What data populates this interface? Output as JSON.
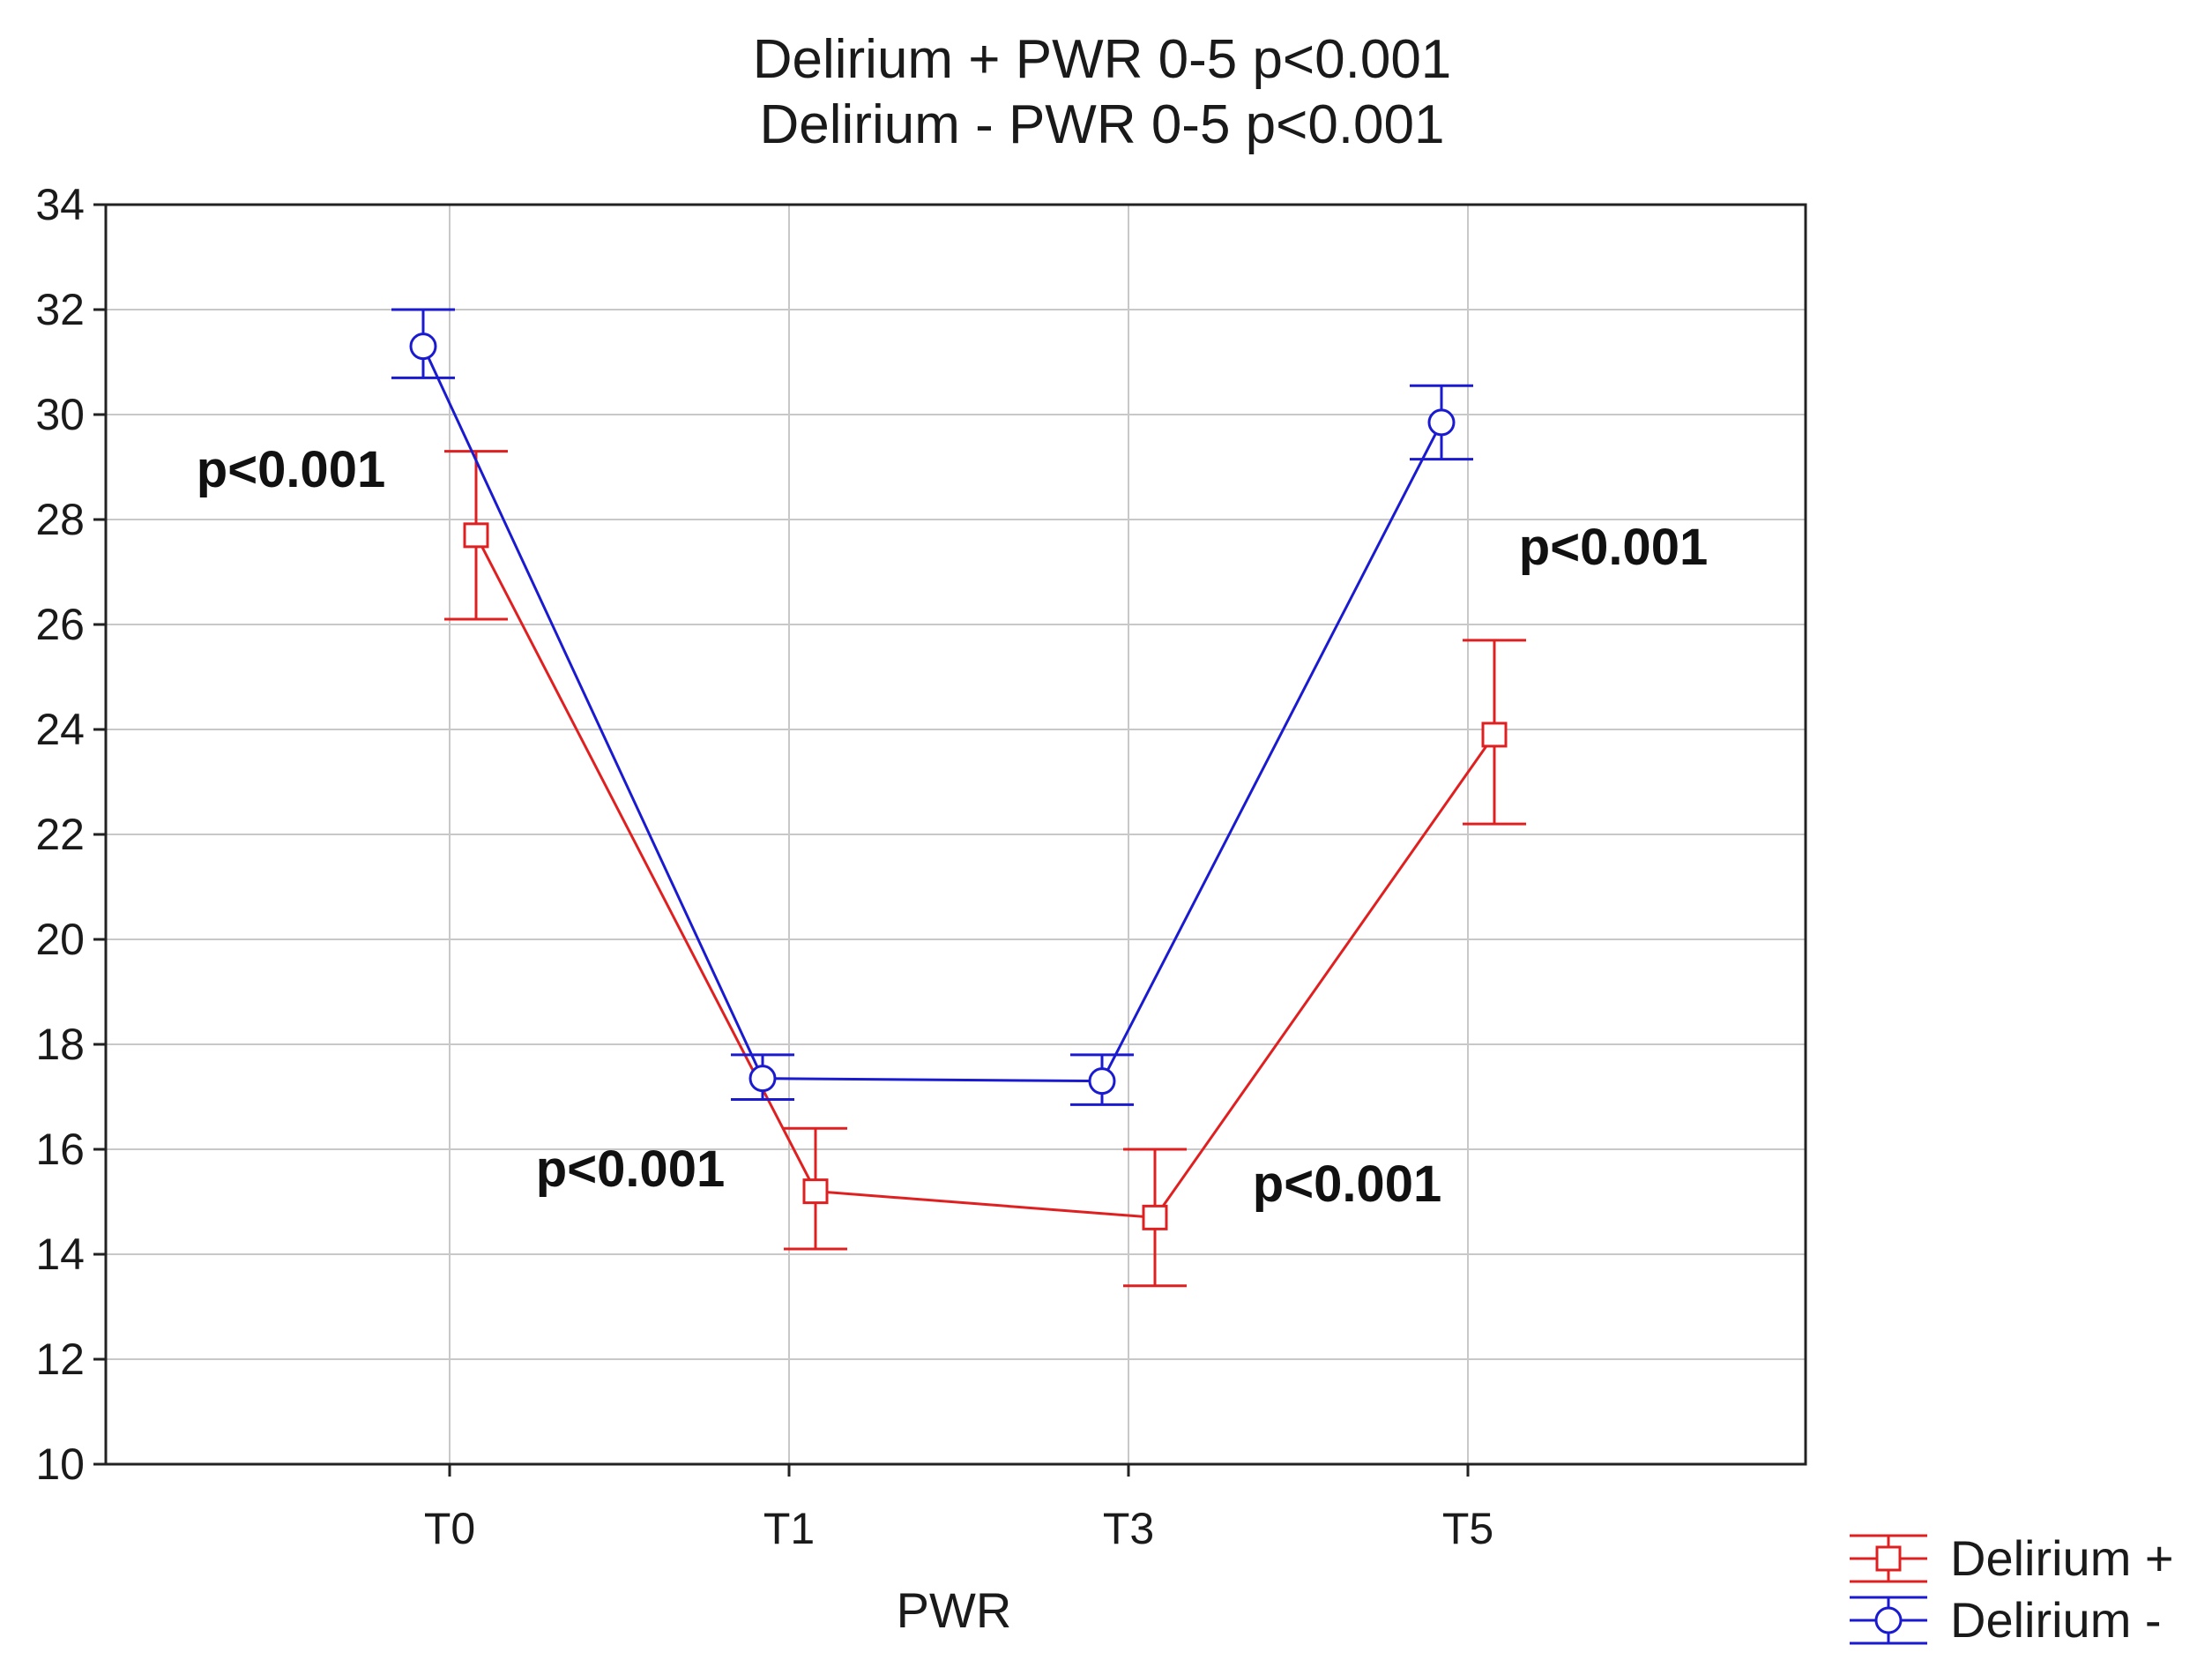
{
  "chart_data": {
    "type": "line",
    "title_lines": [
      "Delirium + PWR 0-5 p<0.001",
      "Delirium - PWR 0-5 p<0.001"
    ],
    "xlabel": "PWR",
    "ylabel": "",
    "categories": [
      "T0",
      "T1",
      "T3",
      "T5"
    ],
    "ylim": [
      10,
      34
    ],
    "yticks": [
      10,
      12,
      14,
      16,
      18,
      20,
      22,
      24,
      26,
      28,
      30,
      32,
      34
    ],
    "grid": true,
    "legend_position": "bottom-right",
    "series": [
      {
        "name": "Delirium +",
        "color": "#e02020",
        "marker": "square",
        "values": [
          27.7,
          15.2,
          14.7,
          23.9
        ],
        "lower": [
          26.1,
          14.1,
          13.4,
          22.2
        ],
        "upper": [
          29.3,
          16.4,
          16.0,
          25.7
        ]
      },
      {
        "name": "Delirium -",
        "color": "#1a1ad0",
        "marker": "circle",
        "values": [
          31.3,
          17.35,
          17.3,
          29.85
        ],
        "lower": [
          30.7,
          16.95,
          16.85,
          29.15
        ],
        "upper": [
          32.0,
          17.8,
          17.8,
          30.55
        ]
      }
    ],
    "annotations": [
      {
        "text": "p<0.001",
        "category": "T0"
      },
      {
        "text": "p<0.001",
        "category": "T1"
      },
      {
        "text": "p<0.001",
        "category": "T3"
      },
      {
        "text": "p<0.001",
        "category": "T5"
      }
    ]
  }
}
